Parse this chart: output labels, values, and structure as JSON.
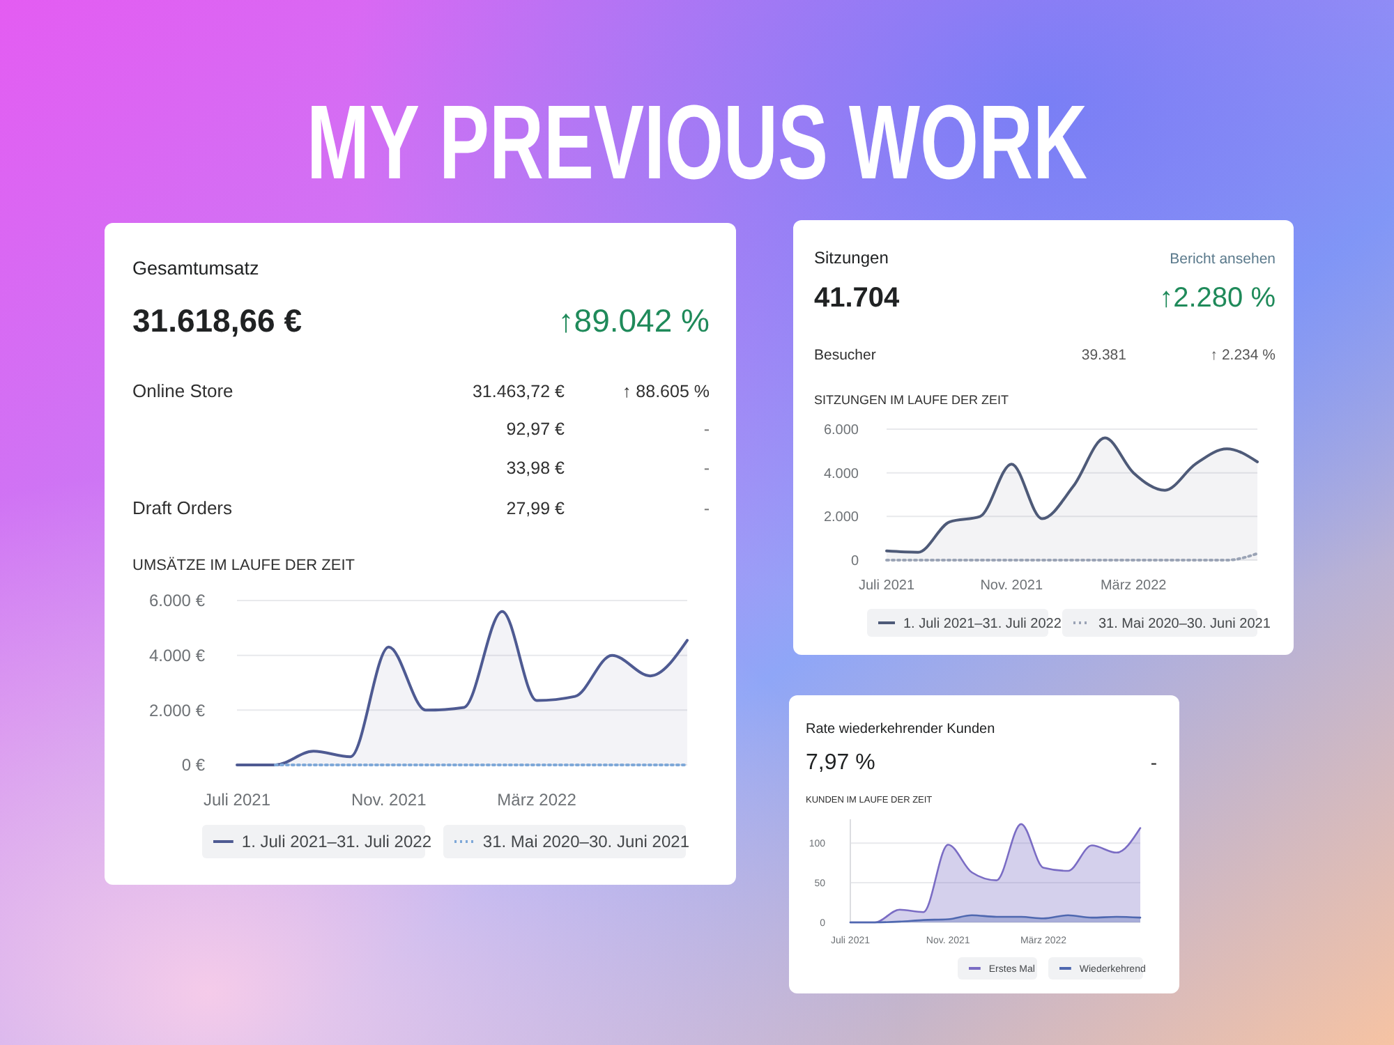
{
  "chart_data": [
    {
      "type": "other",
      "title": "MY PREVIOUS WORK"
    },
    {
      "type": "line",
      "title": "Gesamtumsatz",
      "subtitle": "UMSÄTZE IM LAUFE DER ZEIT",
      "annotations": [
        "31.618,66 €",
        "↑89.042 %",
        "Online Store",
        "31.463,72 €",
        "↑ 88.605 %",
        "92,97 €",
        "-",
        "33,98 €",
        "-",
        "Draft Orders",
        "27,99 €",
        "-"
      ],
      "x": [
        "2021-07",
        "2021-08",
        "2021-09",
        "2021-10",
        "2021-11",
        "2021-12",
        "2022-01",
        "2022-02",
        "2022-03",
        "2022-04",
        "2022-05",
        "2022-06",
        "2022-07"
      ],
      "xlim": [
        "2021-07",
        "2022-07"
      ],
      "xticks": [
        {
          "value": "2021-07",
          "label": "Juli 2021"
        },
        {
          "value": "2021-11",
          "label": "Nov. 2021"
        },
        {
          "value": "2022-03",
          "label": "März 2022"
        }
      ],
      "ylim": [
        0,
        6000
      ],
      "yticks": [
        {
          "value": 0,
          "label": "0 €"
        },
        {
          "value": 2000,
          "label": "2.000 €"
        },
        {
          "value": 4000,
          "label": "4.000 €"
        },
        {
          "value": 6000,
          "label": "6.000 €"
        }
      ],
      "grid": "y",
      "legend": "bottom",
      "series": [
        {
          "name": "1. Juli 2021–31. Juli 2022",
          "type": "area",
          "color": "#4e5a92",
          "values": [
            0,
            0,
            500,
            300,
            4300,
            2000,
            2100,
            5600,
            2350,
            2500,
            4000,
            3250,
            4550
          ]
        },
        {
          "name": "31. Mai 2020–30. Juni 2021",
          "color": "#7ea8d8",
          "line_style": "dotted",
          "values": [
            null,
            0,
            0,
            0,
            0,
            0,
            0,
            0,
            0,
            0,
            0,
            0,
            0
          ]
        }
      ]
    },
    {
      "type": "line",
      "title": "Sitzungen",
      "subtitle": "SITZUNGEN IM LAUFE DER ZEIT",
      "annotations": [
        "Bericht ansehen",
        "41.704",
        "↑2.280 %",
        "Besucher",
        "39.381",
        "↑ 2.234 %"
      ],
      "x": [
        "2021-07",
        "2021-08",
        "2021-09",
        "2021-10",
        "2021-11",
        "2021-12",
        "2022-01",
        "2022-02",
        "2022-03",
        "2022-04",
        "2022-05",
        "2022-06",
        "2022-07"
      ],
      "xlim": [
        "2021-07",
        "2022-07"
      ],
      "xticks": [
        {
          "value": "2021-07",
          "label": "Juli 2021"
        },
        {
          "value": "2021-11",
          "label": "Nov. 2021"
        },
        {
          "value": "2022-03",
          "label": "März 2022"
        }
      ],
      "ylim": [
        0,
        6000
      ],
      "yticks": [
        0,
        {
          "value": 2000,
          "label": "2.000"
        },
        {
          "value": 4000,
          "label": "4.000"
        },
        {
          "value": 6000,
          "label": "6.000"
        }
      ],
      "grid": "y",
      "legend": "bottom",
      "series": [
        {
          "name": "1. Juli 2021–31. Juli 2022",
          "type": "area",
          "color": "#4e5a78",
          "values": [
            420,
            360,
            1750,
            2000,
            4400,
            1900,
            3400,
            5600,
            4000,
            3200,
            4400,
            5100,
            4500
          ]
        },
        {
          "name": "31. Mai 2020–30. Juni 2021",
          "color": "#9aa3b5",
          "line_style": "dotted",
          "values": [
            0,
            0,
            0,
            0,
            0,
            0,
            0,
            0,
            0,
            0,
            0,
            0,
            300
          ]
        }
      ]
    },
    {
      "type": "area",
      "title": "Rate wiederkehrender Kunden",
      "subtitle": "KUNDEN IM LAUFE DER ZEIT",
      "annotations": [
        "7,97 %",
        "-"
      ],
      "x": [
        "2021-07",
        "2021-08",
        "2021-09",
        "2021-10",
        "2021-11",
        "2021-12",
        "2022-01",
        "2022-02",
        "2022-03",
        "2022-04",
        "2022-05",
        "2022-06",
        "2022-07"
      ],
      "xlim": [
        "2021-07",
        "2022-07"
      ],
      "xticks": [
        {
          "value": "2021-07",
          "label": "Juli 2021"
        },
        {
          "value": "2021-11",
          "label": "Nov. 2021"
        },
        {
          "value": "2022-03",
          "label": "März 2022"
        }
      ],
      "ylim": [
        0,
        130
      ],
      "yticks": [
        0,
        50,
        100
      ],
      "grid": "y",
      "legend": "bottom",
      "series": [
        {
          "name": "Erstes Mal",
          "color": "#7a6cc4",
          "values": [
            0,
            0,
            16,
            13,
            98,
            63,
            53,
            124,
            69,
            65,
            97,
            88,
            119
          ]
        },
        {
          "name": "Wiederkehrend",
          "color": "#4f68b0",
          "values": [
            0,
            0,
            1,
            3,
            4,
            9,
            7,
            7,
            5,
            9,
            6,
            7,
            6
          ]
        }
      ]
    }
  ]
}
